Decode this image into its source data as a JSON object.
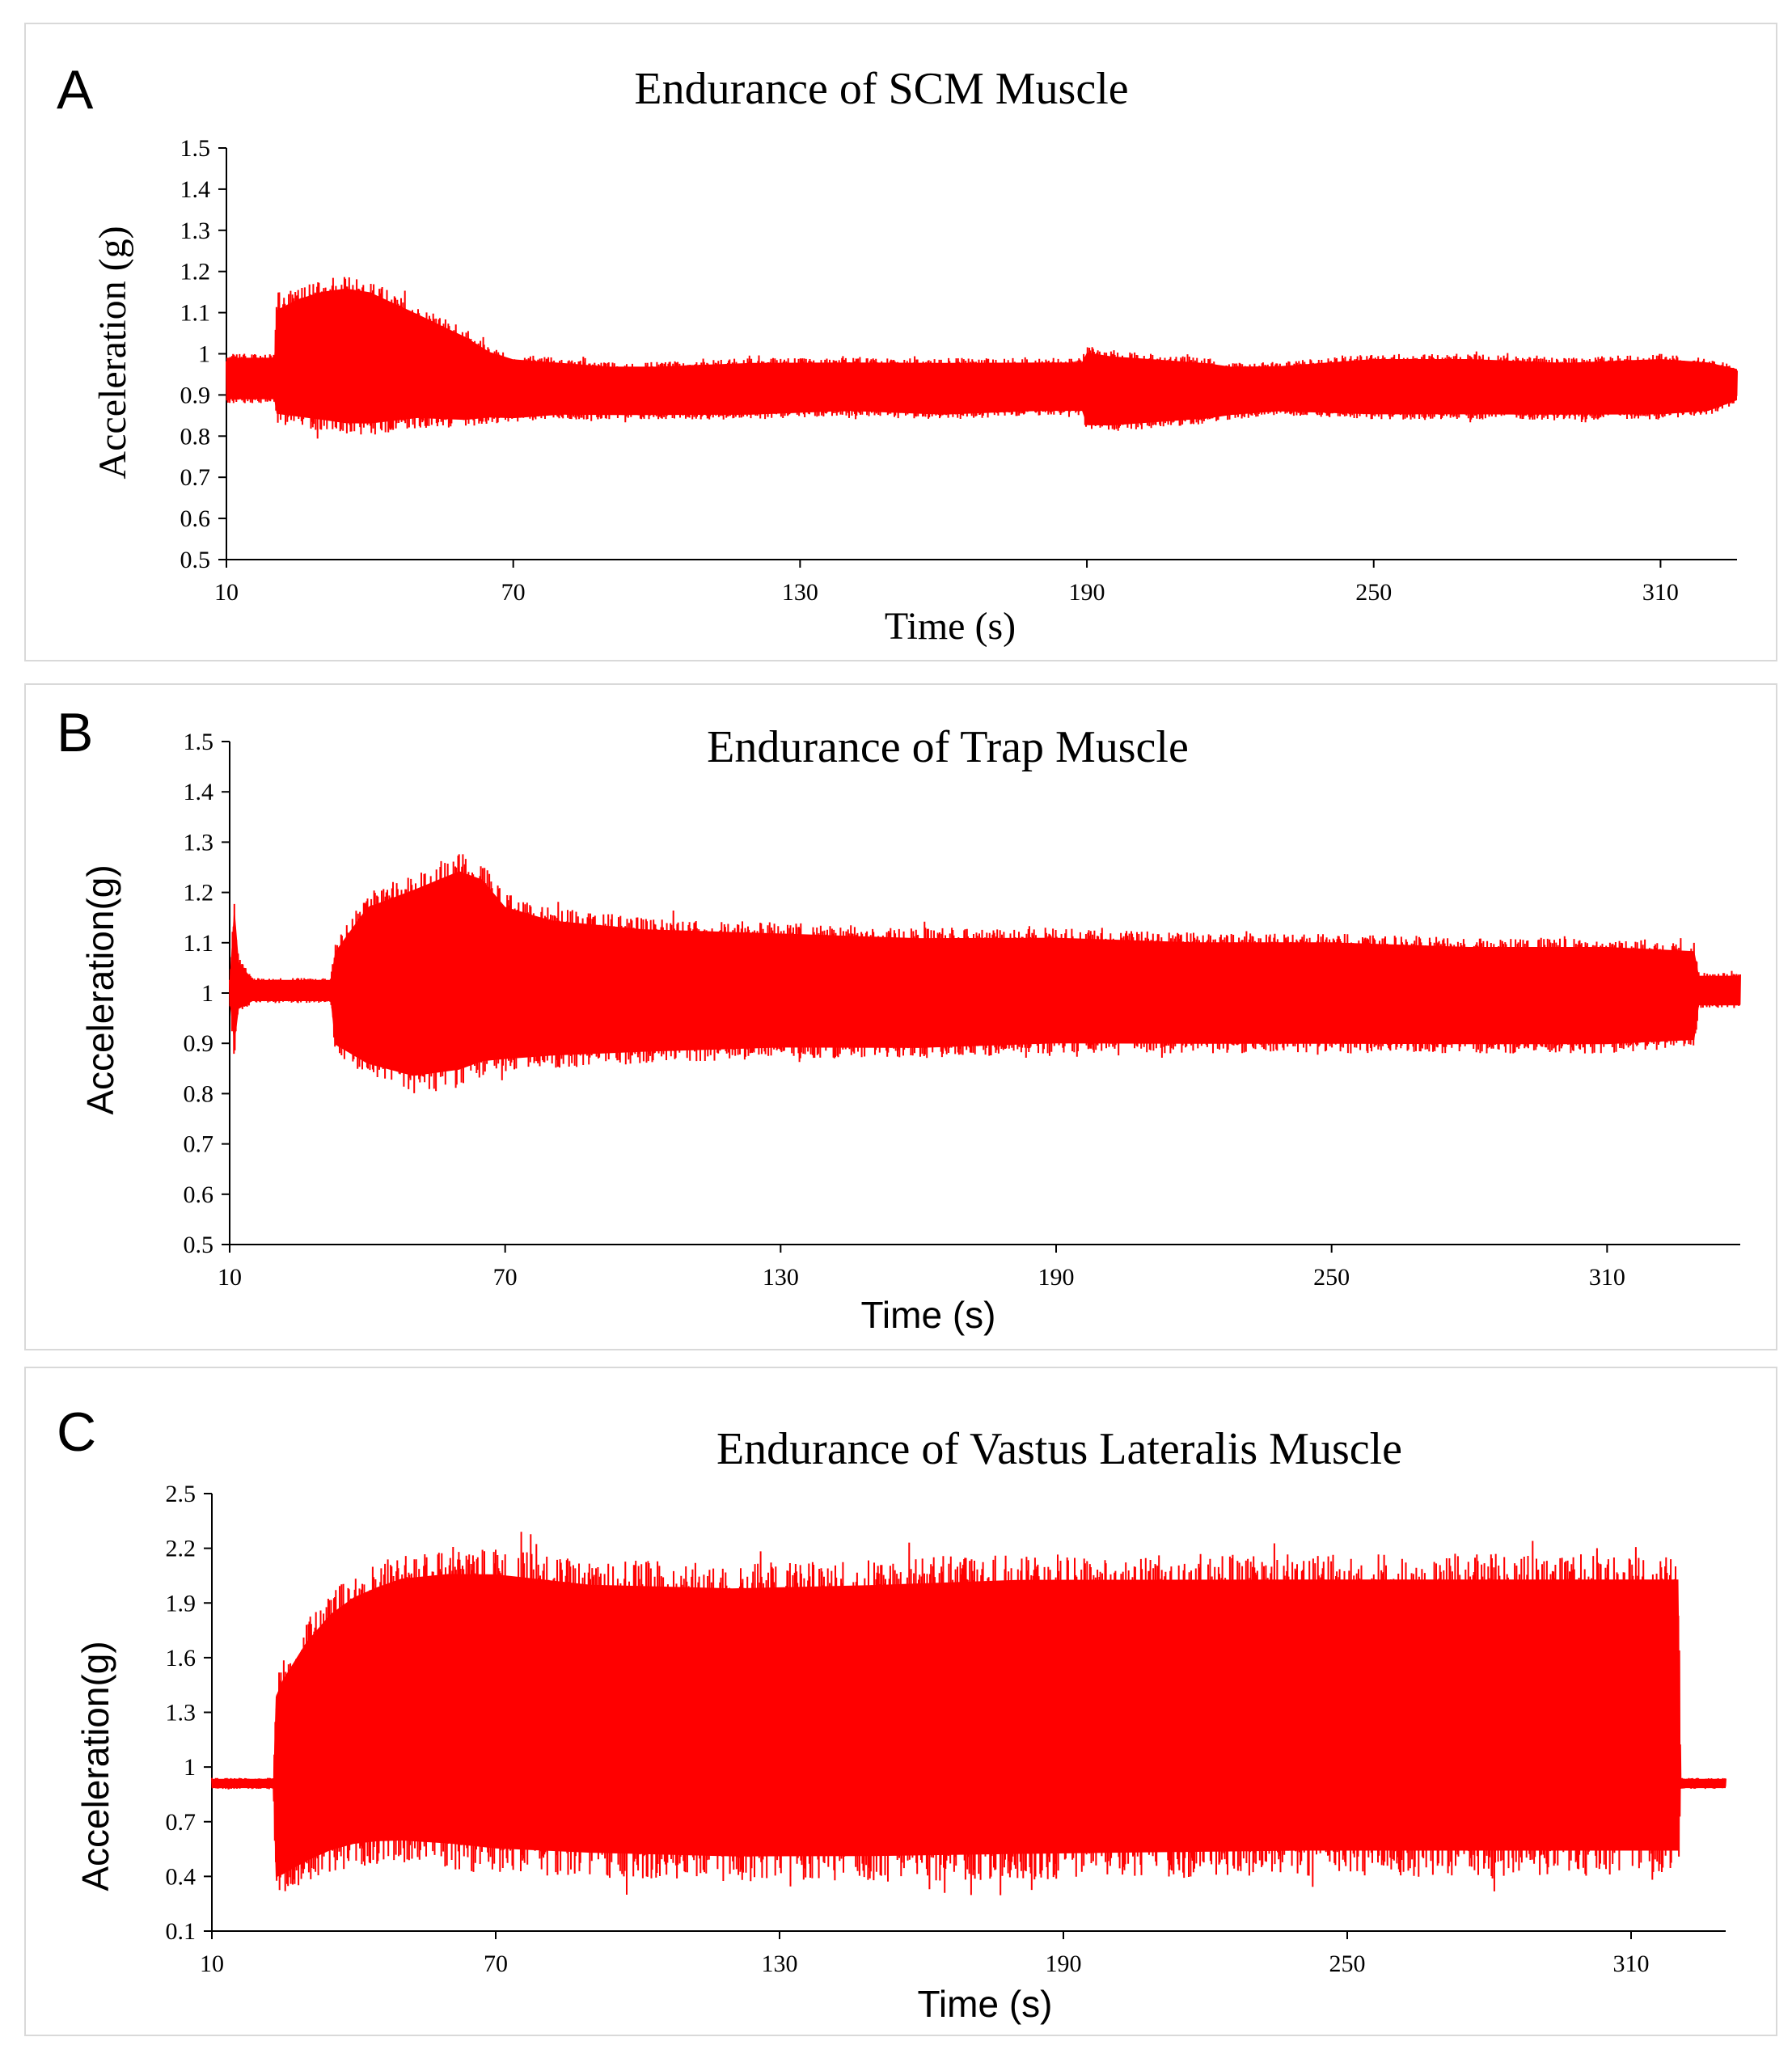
{
  "panels": [
    {
      "letter": "A"
    },
    {
      "letter": "B"
    },
    {
      "letter": "C"
    }
  ],
  "chart_data": [
    {
      "type": "line",
      "title": "Endurance of SCM Muscle",
      "xlabel": "Time (s)",
      "ylabel": "Acceleration (g)",
      "xlim": [
        10,
        326
      ],
      "ylim": [
        0.5,
        1.5
      ],
      "xticks": [
        "10",
        "70",
        "130",
        "190",
        "250",
        "310"
      ],
      "yticks": [
        "0.5",
        "0.6",
        "0.7",
        "0.8",
        "0.9",
        "1",
        "1.1",
        "1.2",
        "1.3",
        "1.4",
        "1.5"
      ],
      "grid": false,
      "color": "#ff0000",
      "envelope": {
        "x": [
          10,
          20,
          20.5,
          25,
          30,
          35,
          40,
          45,
          50,
          55,
          60,
          65,
          70,
          80,
          90,
          100,
          120,
          140,
          160,
          180,
          189,
          190,
          195,
          205,
          215,
          220,
          230,
          250,
          270,
          290,
          310,
          320,
          326
        ],
        "upper": [
          1.0,
          1.0,
          1.13,
          1.16,
          1.18,
          1.19,
          1.18,
          1.15,
          1.12,
          1.09,
          1.06,
          1.02,
          1.0,
          0.99,
          0.98,
          0.98,
          0.99,
          0.99,
          0.99,
          0.99,
          0.99,
          1.02,
          1.01,
          1.0,
          0.99,
          0.98,
          0.98,
          1.0,
          1.0,
          0.99,
          1.0,
          0.99,
          0.97
        ],
        "lower": [
          0.88,
          0.88,
          0.83,
          0.82,
          0.81,
          0.8,
          0.8,
          0.81,
          0.82,
          0.82,
          0.82,
          0.83,
          0.83,
          0.84,
          0.84,
          0.84,
          0.84,
          0.85,
          0.84,
          0.85,
          0.85,
          0.81,
          0.81,
          0.82,
          0.83,
          0.84,
          0.85,
          0.84,
          0.84,
          0.84,
          0.84,
          0.85,
          0.88
        ]
      }
    },
    {
      "type": "line",
      "title": "Endurance of Trap Muscle",
      "xlabel": "Time (s)",
      "ylabel": "Acceleration(g)",
      "xlim": [
        10,
        339
      ],
      "ylim": [
        0.5,
        1.5
      ],
      "xticks": [
        "10",
        "70",
        "130",
        "190",
        "250",
        "310"
      ],
      "yticks": [
        "0.5",
        "0.6",
        "0.7",
        "0.8",
        "0.9",
        "1",
        "1.1",
        "1.2",
        "1.3",
        "1.4",
        "1.5"
      ],
      "grid": false,
      "color": "#ff0000",
      "envelope": {
        "x": [
          10,
          11,
          12,
          15,
          32,
          33,
          40,
          50,
          60,
          65,
          70,
          80,
          100,
          130,
          160,
          190,
          220,
          250,
          280,
          310,
          329,
          330,
          339
        ],
        "upper": [
          1.03,
          1.2,
          1.07,
          1.03,
          1.03,
          1.1,
          1.2,
          1.24,
          1.28,
          1.26,
          1.2,
          1.17,
          1.15,
          1.14,
          1.13,
          1.13,
          1.12,
          1.12,
          1.11,
          1.11,
          1.1,
          1.04,
          1.04
        ],
        "lower": [
          0.98,
          0.87,
          0.96,
          0.98,
          0.98,
          0.88,
          0.83,
          0.8,
          0.81,
          0.83,
          0.84,
          0.85,
          0.86,
          0.87,
          0.87,
          0.88,
          0.88,
          0.88,
          0.88,
          0.88,
          0.89,
          0.97,
          0.97
        ]
      }
    },
    {
      "type": "line",
      "title": "Endurance of Vastus Lateralis Muscle",
      "xlabel": "Time (s)",
      "ylabel": "Acceleration(g)",
      "xlim": [
        10,
        330
      ],
      "ylim": [
        0.1,
        2.5
      ],
      "xticks": [
        "10",
        "70",
        "130",
        "190",
        "250",
        "310"
      ],
      "yticks": [
        "0.1",
        "0.4",
        "0.7",
        "1",
        "1.3",
        "1.6",
        "1.9",
        "2.2",
        "2.5"
      ],
      "grid": false,
      "color": "#ff0000",
      "envelope": {
        "x": [
          10,
          23,
          23.5,
          25,
          30,
          35,
          40,
          45,
          50,
          60,
          70,
          90,
          120,
          150,
          180,
          210,
          240,
          270,
          300,
          320,
          320.5,
          330
        ],
        "upper": [
          0.94,
          0.94,
          1.48,
          1.58,
          1.8,
          1.96,
          2.06,
          2.12,
          2.17,
          2.2,
          2.2,
          2.14,
          2.12,
          2.14,
          2.17,
          2.17,
          2.17,
          2.17,
          2.17,
          2.17,
          0.94,
          0.94
        ],
        "lower": [
          0.88,
          0.88,
          0.3,
          0.31,
          0.37,
          0.42,
          0.45,
          0.46,
          0.46,
          0.44,
          0.41,
          0.39,
          0.37,
          0.37,
          0.38,
          0.39,
          0.4,
          0.4,
          0.4,
          0.4,
          0.88,
          0.88
        ]
      }
    }
  ]
}
